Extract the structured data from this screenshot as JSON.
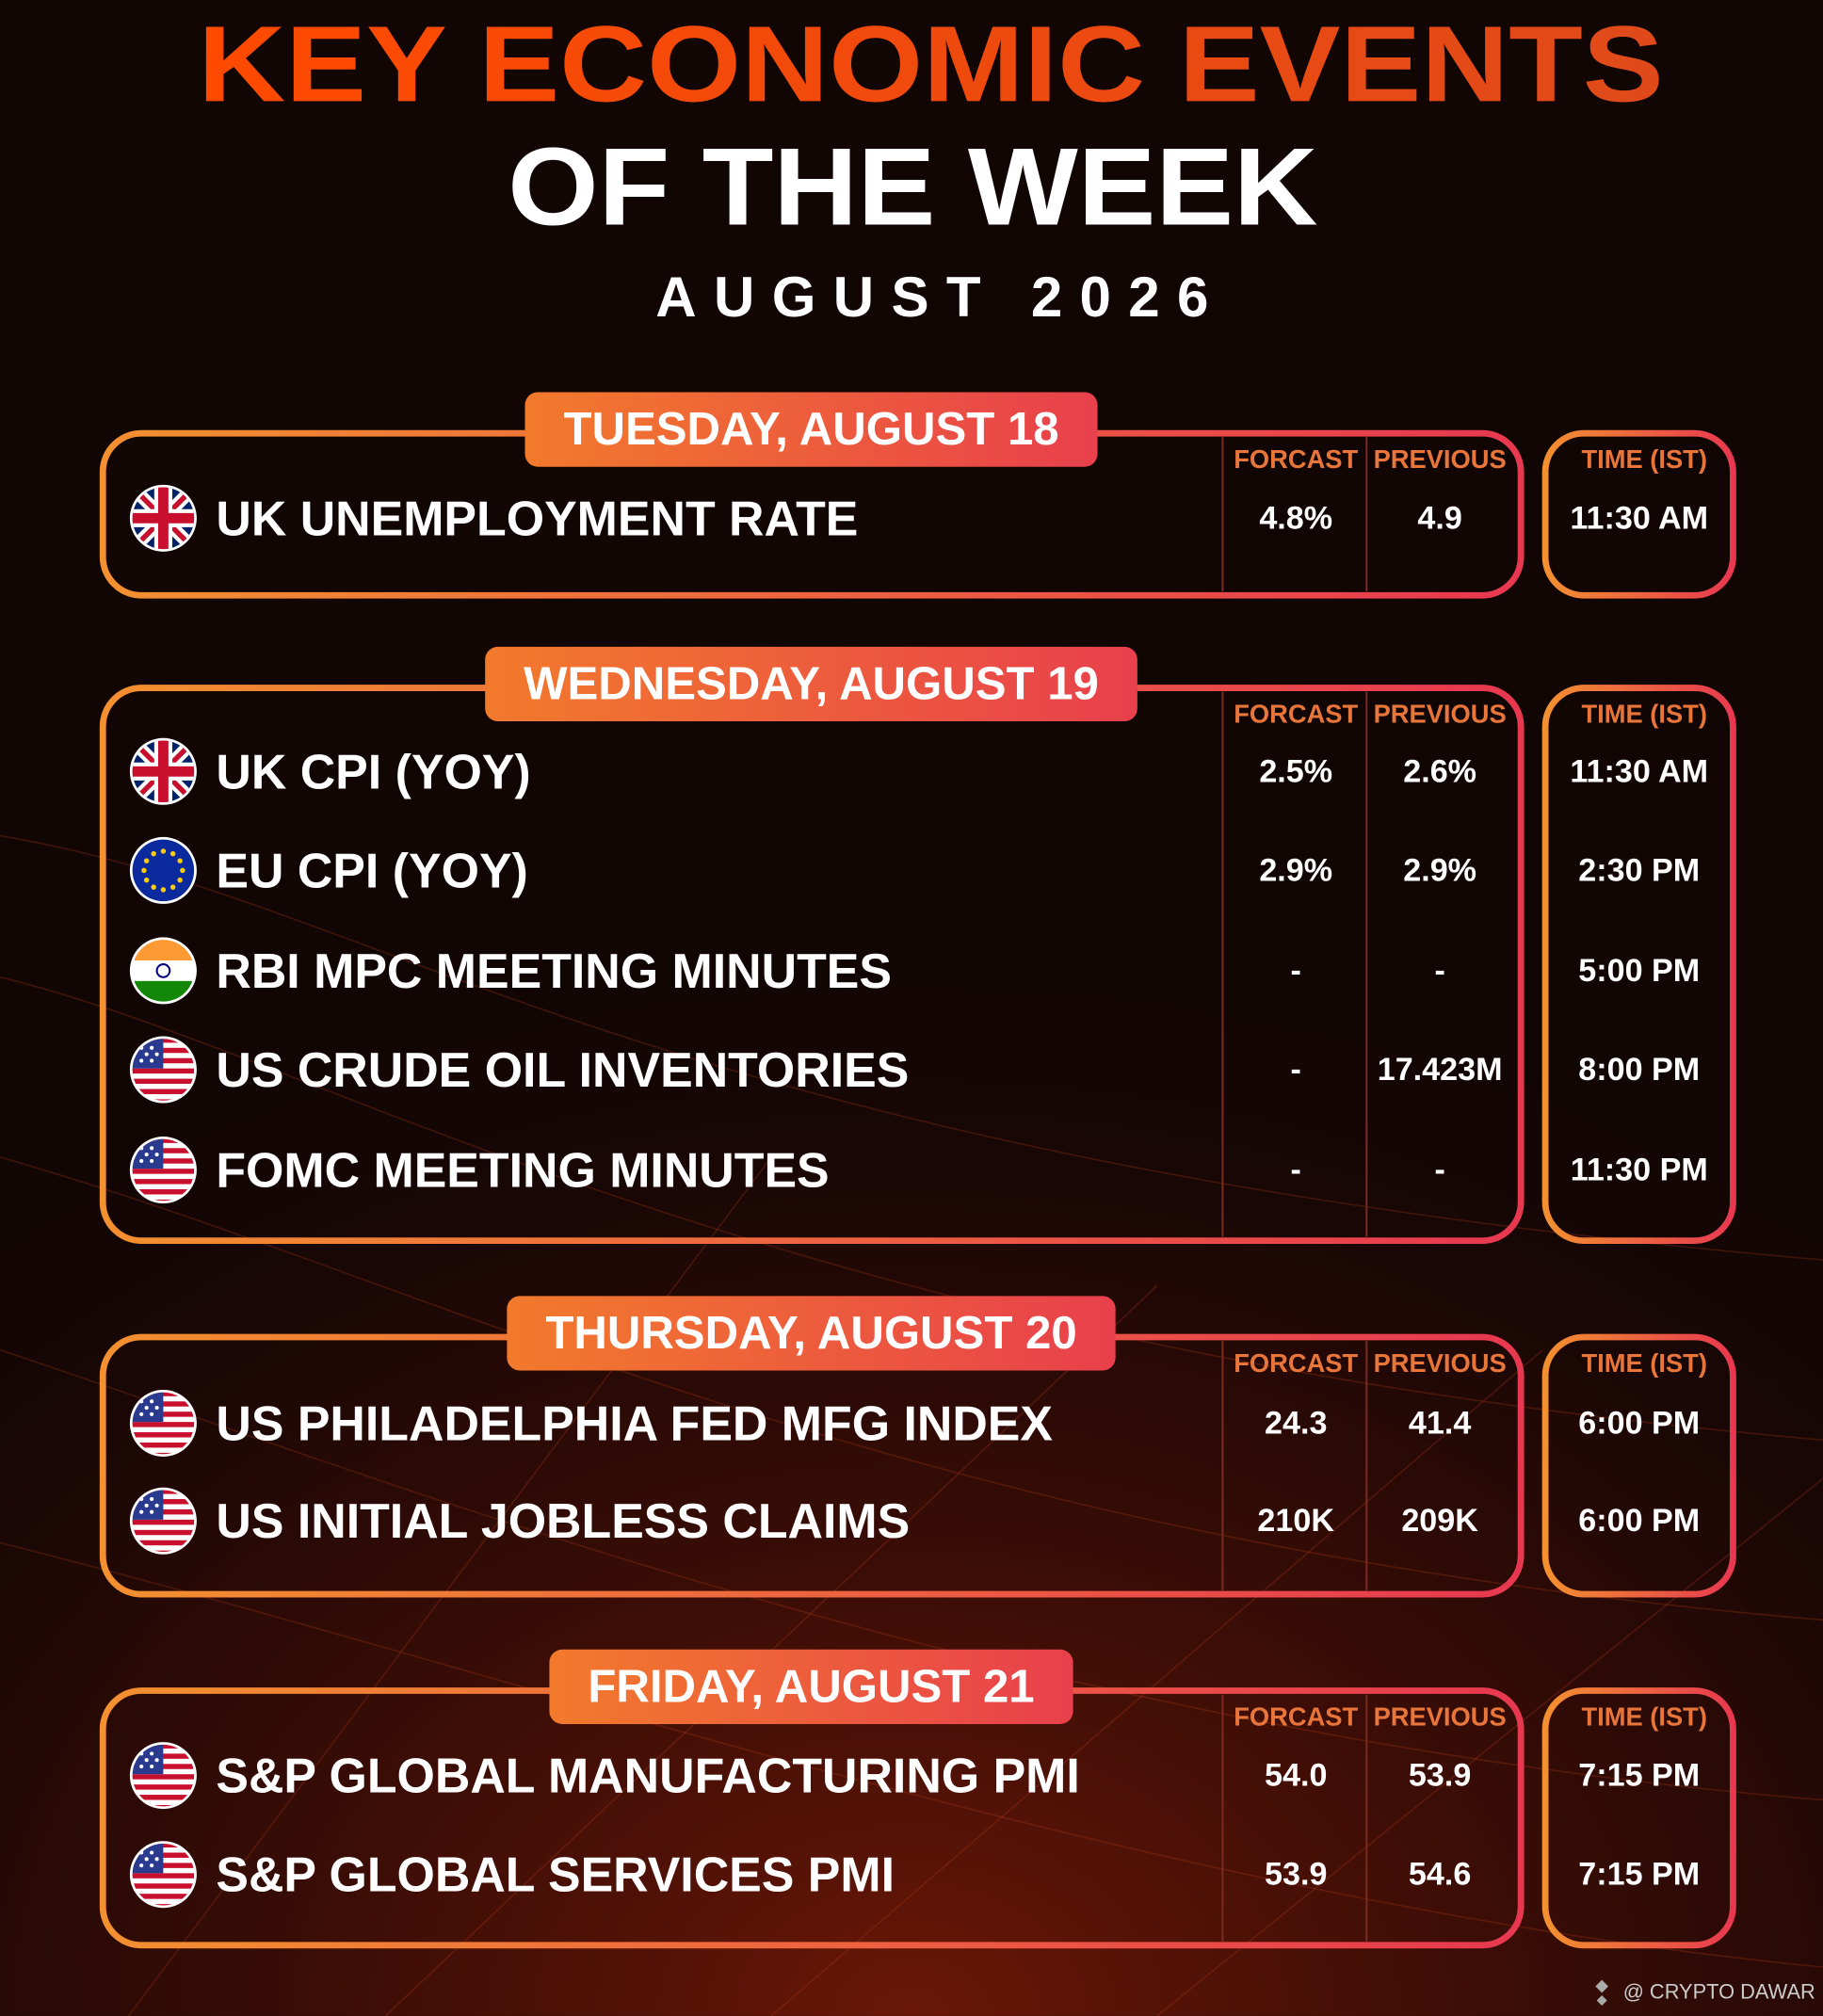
{
  "header": {
    "title": "KEY ECONOMIC EVENTS",
    "subtitle": "OF THE WEEK",
    "date": "AUGUST 2026"
  },
  "days": [
    {
      "label": "TUESDAY, AUGUST 18",
      "columns": [
        "FORCAST",
        "PREVIOUS",
        "TIME (IST)"
      ],
      "events": [
        {
          "name": "UK UNEMPLOYMENT RATE",
          "forecast": "4.8%",
          "previous": "4.9",
          "time": "11:30 AM"
        }
      ]
    },
    {
      "label": "WEDNESDAY, AUGUST 19",
      "columns": [
        "FORCAST",
        "PREVIOUS",
        "TIME (IST)"
      ],
      "events": [
        {
          "name": "UK CPI (YOY)",
          "forecast": "2.5%",
          "previous": "2.6%",
          "time": "11:30 AM"
        },
        {
          "name": "EU CPI (YOY)",
          "forecast": "2.9%",
          "previous": "2.9%",
          "time": "2:30 PM"
        },
        {
          "name": "RBI MPC MEETING MINUTES",
          "forecast": "-",
          "previous": "-",
          "time": "5:00 PM"
        },
        {
          "name": "US CRUDE OIL INVENTORIES",
          "forecast": "-",
          "previous": "17.423M",
          "time": "8:00 PM"
        },
        {
          "name": "FOMC MEETING MINUTES",
          "forecast": "-",
          "previous": "-",
          "time": "11:30 PM"
        }
      ]
    },
    {
      "label": "THURSDAY, AUGUST 20",
      "columns": [
        "FORCAST",
        "PREVIOUS",
        "TIME (IST)"
      ],
      "events": [
        {
          "name": "US PHILADELPHIA FED MFG INDEX",
          "forecast": "24.3",
          "previous": "41.4",
          "time": "6:00 PM"
        },
        {
          "name": "US INITIAL JOBLESS CLAIMS",
          "forecast": "210K",
          "previous": "209K",
          "time": "6:00 PM"
        }
      ]
    },
    {
      "label": "FRIDAY, AUGUST 21",
      "columns": [
        "FORCAST",
        "PREVIOUS",
        "TIME (IST)"
      ],
      "events": [
        {
          "name": "S&P GLOBAL MANUFACTURING PMI",
          "forecast": "54.0",
          "previous": "53.9",
          "time": "7:15 PM"
        },
        {
          "name": "S&P GLOBAL SERVICES PMI",
          "forecast": "53.9",
          "previous": "54.6",
          "time": "7:15 PM"
        }
      ]
    }
  ],
  "footer": {
    "credit": "@ CRYPTO DAWAR"
  }
}
